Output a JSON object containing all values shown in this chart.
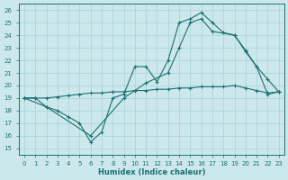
{
  "xlabel": "Humidex (Indice chaleur)",
  "xlim": [
    -0.5,
    23.5
  ],
  "ylim": [
    14.5,
    26.5
  ],
  "yticks": [
    15,
    16,
    17,
    18,
    19,
    20,
    21,
    22,
    23,
    24,
    25,
    26
  ],
  "xticks": [
    0,
    1,
    2,
    3,
    4,
    5,
    6,
    7,
    8,
    9,
    10,
    11,
    12,
    13,
    14,
    15,
    16,
    17,
    18,
    19,
    20,
    21,
    22,
    23
  ],
  "bg_color": "#cde8ec",
  "grid_color": "#b0d8de",
  "line_color": "#1a7070",
  "line1_x": [
    0,
    1,
    2,
    3,
    4,
    5,
    6,
    7,
    8,
    9,
    10,
    11,
    12,
    13,
    14,
    15,
    16,
    17,
    18,
    19,
    20,
    21,
    22,
    23
  ],
  "line1_y": [
    19,
    19,
    18.3,
    18,
    17.5,
    17,
    15.5,
    16.3,
    19,
    19.3,
    21.5,
    21.5,
    20.3,
    22,
    25,
    25.3,
    25.8,
    25,
    24.2,
    24,
    22.8,
    21.5,
    20.5,
    19.5
  ],
  "line2_x": [
    0,
    2,
    6,
    9,
    11,
    13,
    14,
    15,
    16,
    17,
    19,
    20,
    21,
    22,
    23
  ],
  "line2_y": [
    19,
    18.3,
    16,
    19,
    20.2,
    21,
    23,
    25,
    25.3,
    24.3,
    24,
    22.7,
    21.5,
    19.3,
    19.5
  ],
  "line3_x": [
    0,
    1,
    2,
    3,
    4,
    5,
    6,
    7,
    8,
    9,
    10,
    11,
    12,
    13,
    14,
    15,
    16,
    17,
    18,
    19,
    20,
    21,
    22,
    23
  ],
  "line3_y": [
    19,
    19,
    19,
    19.1,
    19.2,
    19.3,
    19.4,
    19.4,
    19.5,
    19.5,
    19.6,
    19.6,
    19.7,
    19.7,
    19.8,
    19.8,
    19.9,
    19.9,
    19.9,
    20.0,
    19.8,
    19.6,
    19.4,
    19.5
  ]
}
